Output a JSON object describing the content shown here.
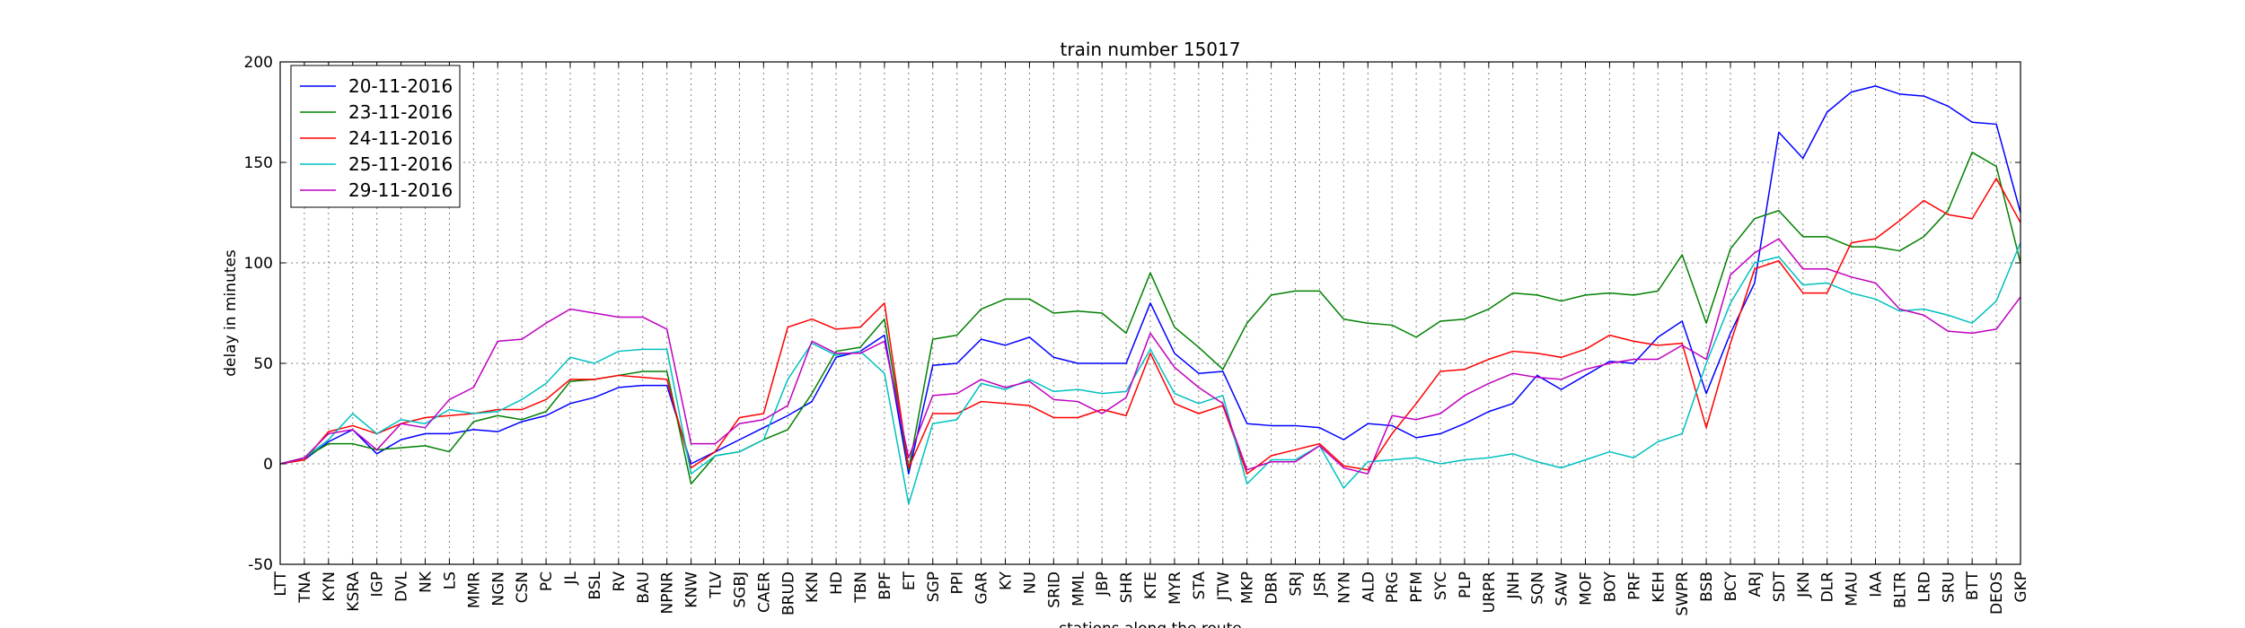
{
  "chart_data": {
    "type": "line",
    "title": "train number 15017",
    "xlabel": "stations along the route",
    "ylabel": "delay in minutes",
    "ylim": [
      -50,
      200
    ],
    "yticks": [
      -50,
      0,
      50,
      100,
      150,
      200
    ],
    "grid": true,
    "legend_position": "top-left",
    "categories": [
      "LTT",
      "TNA",
      "KYN",
      "KSRA",
      "IGP",
      "DVL",
      "NK",
      "LS",
      "MMR",
      "NGN",
      "CSN",
      "PC",
      "JL",
      "BSL",
      "RV",
      "BAU",
      "NPNR",
      "KNW",
      "TLV",
      "SGBJ",
      "CAER",
      "BRUD",
      "KKN",
      "HD",
      "TBN",
      "BPF",
      "ET",
      "SGP",
      "PPI",
      "GAR",
      "KY",
      "NU",
      "SRID",
      "MML",
      "JBP",
      "SHR",
      "KTE",
      "MYR",
      "STA",
      "JTW",
      "MKP",
      "DBR",
      "SRJ",
      "JSR",
      "NYN",
      "ALD",
      "PRG",
      "PFM",
      "SYC",
      "PLP",
      "URPR",
      "JNH",
      "SQN",
      "SAW",
      "MOF",
      "BOY",
      "PRF",
      "KEH",
      "SWPR",
      "BSB",
      "BCY",
      "ARJ",
      "SDT",
      "JKN",
      "DLR",
      "MAU",
      "IAA",
      "BLTR",
      "LRD",
      "SRU",
      "BTT",
      "DEOS",
      "GKP"
    ],
    "series": [
      {
        "name": "20-11-2016",
        "color": "#0000ff",
        "values": [
          0,
          2,
          11,
          17,
          5,
          12,
          15,
          15,
          17,
          16,
          21,
          24,
          30,
          33,
          38,
          39,
          39,
          0,
          6,
          12,
          18,
          24,
          31,
          53,
          56,
          64,
          -5,
          49,
          50,
          62,
          59,
          63,
          53,
          50,
          50,
          50,
          80,
          55,
          45,
          46,
          20,
          19,
          19,
          18,
          12,
          20,
          19,
          13,
          15,
          20,
          26,
          30,
          44,
          37,
          44,
          51,
          50,
          63,
          71,
          35,
          65,
          90,
          165,
          152,
          175,
          185,
          188,
          184,
          183,
          178,
          170,
          169,
          125
        ]
      },
      {
        "name": "23-11-2016",
        "color": "#008000",
        "values": [
          0,
          3,
          10,
          10,
          7,
          8,
          9,
          6,
          21,
          24,
          22,
          26,
          41,
          42,
          44,
          46,
          46,
          -10,
          4,
          6,
          12,
          17,
          35,
          56,
          58,
          72,
          -3,
          62,
          64,
          77,
          82,
          82,
          75,
          76,
          75,
          65,
          95,
          68,
          58,
          47,
          70,
          84,
          86,
          86,
          72,
          70,
          69,
          63,
          71,
          72,
          77,
          85,
          84,
          81,
          84,
          85,
          84,
          86,
          104,
          70,
          107,
          122,
          126,
          113,
          113,
          108,
          108,
          106,
          113,
          126,
          155,
          148,
          100
        ]
      },
      {
        "name": "24-11-2016",
        "color": "#ff0000",
        "values": [
          0,
          2,
          16,
          19,
          15,
          20,
          23,
          24,
          25,
          27,
          27,
          32,
          42,
          42,
          44,
          43,
          42,
          -2,
          6,
          23,
          25,
          68,
          72,
          67,
          68,
          80,
          -2,
          25,
          25,
          31,
          30,
          29,
          23,
          23,
          27,
          24,
          55,
          30,
          25,
          29,
          -5,
          4,
          7,
          10,
          -1,
          -3,
          15,
          30,
          46,
          47,
          52,
          56,
          55,
          53,
          57,
          64,
          61,
          59,
          60,
          18,
          60,
          97,
          101,
          85,
          85,
          110,
          112,
          121,
          131,
          124,
          122,
          142,
          120
        ]
      },
      {
        "name": "25-11-2016",
        "color": "#00c0c0",
        "values": [
          0,
          3,
          12,
          25,
          15,
          22,
          20,
          27,
          25,
          26,
          32,
          40,
          53,
          50,
          56,
          57,
          57,
          -5,
          4,
          6,
          12,
          42,
          60,
          54,
          56,
          45,
          -20,
          20,
          22,
          40,
          37,
          42,
          36,
          37,
          35,
          36,
          57,
          35,
          30,
          34,
          -10,
          2,
          2,
          9,
          -12,
          1,
          2,
          3,
          0,
          2,
          3,
          5,
          1,
          -2,
          2,
          6,
          3,
          11,
          15,
          50,
          80,
          100,
          103,
          89,
          90,
          85,
          82,
          76,
          77,
          74,
          70,
          81,
          110
        ]
      },
      {
        "name": "29-11-2016",
        "color": "#c000c0",
        "values": [
          0,
          3,
          15,
          17,
          7,
          20,
          18,
          32,
          38,
          61,
          62,
          70,
          77,
          75,
          73,
          73,
          67,
          10,
          10,
          20,
          22,
          29,
          61,
          55,
          55,
          61,
          3,
          34,
          35,
          42,
          38,
          41,
          32,
          31,
          25,
          33,
          65,
          48,
          38,
          30,
          -3,
          1,
          1,
          9,
          -2,
          -5,
          24,
          22,
          25,
          34,
          40,
          45,
          43,
          42,
          47,
          50,
          52,
          52,
          59,
          52,
          94,
          105,
          112,
          97,
          97,
          93,
          90,
          77,
          74,
          66,
          65,
          67,
          83
        ]
      }
    ]
  }
}
